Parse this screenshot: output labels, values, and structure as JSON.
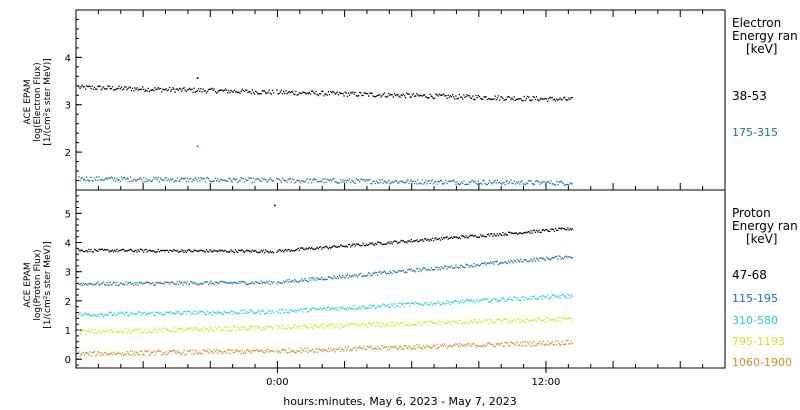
{
  "page": {
    "xaxis_label": "hours:minutes, May  6, 2023 - May  7, 2023"
  },
  "colors": {
    "black": "#000000",
    "blue": "#1a6fd0",
    "cyan": "#1fd6d6",
    "yellow": "#d2ec1a",
    "orange": "#e48a1a"
  },
  "chart_data": [
    {
      "type": "scatter",
      "panel": "electron",
      "ylabel": [
        "ACE EPAM",
        "log(Electron Flux)",
        "[1/(cm²s ster MeV)]"
      ],
      "legend_title": [
        "Electron",
        "Energy ran",
        "[keV]"
      ],
      "x_domain_hours": [
        -9,
        20
      ],
      "ylim": [
        1.2,
        5.0
      ],
      "yticks": [
        2,
        3,
        4
      ],
      "xticks": [
        {
          "hour": 0,
          "label": "0:00"
        },
        {
          "hour": 12,
          "label": "12:00"
        }
      ],
      "gap_hours": [
        -0.2,
        -0.1
      ],
      "series": [
        {
          "name": "38-53",
          "color": "#000000",
          "x_range_hours": [
            -9,
            13.2
          ],
          "y_start": 3.38,
          "y_end": 3.12,
          "noise": 0.05
        },
        {
          "name": "175-315",
          "color": "#1a6fd0",
          "x_range_hours": [
            -9,
            13.2
          ],
          "y_start": 1.45,
          "y_end": 1.36,
          "noise": 0.05
        }
      ],
      "outliers": [
        {
          "series": "38-53",
          "hour": -3.6,
          "value": 3.58
        },
        {
          "series": "175-315",
          "hour": -3.6,
          "value": 2.14
        }
      ]
    },
    {
      "type": "scatter",
      "panel": "proton",
      "ylabel": [
        "ACE EPAM",
        "log(Proton Flux)",
        "[1/(cm²s ster MeV)]"
      ],
      "legend_title": [
        "Proton",
        "Energy ran",
        "[keV]"
      ],
      "x_domain_hours": [
        -9,
        20
      ],
      "ylim": [
        -0.3,
        5.8
      ],
      "yticks": [
        0,
        1,
        2,
        3,
        4,
        5
      ],
      "xticks": [
        {
          "hour": 0,
          "label": "0:00"
        },
        {
          "hour": 12,
          "label": "12:00"
        }
      ],
      "gap_hours": [
        -0.2,
        -0.1
      ],
      "series": [
        {
          "name": "47-68",
          "color": "#000000",
          "x_range_hours": [
            -9,
            13.2
          ],
          "y_start": 3.75,
          "y_mid": 3.72,
          "y_end": 4.5,
          "noise": 0.05
        },
        {
          "name": "115-195",
          "color": "#1a6fd0",
          "x_range_hours": [
            -9,
            13.2
          ],
          "y_start": 2.6,
          "y_mid": 2.65,
          "y_end": 3.55,
          "noise": 0.06
        },
        {
          "name": "310-580",
          "color": "#1fd6d6",
          "x_range_hours": [
            -9,
            13.2
          ],
          "y_start": 1.55,
          "y_mid": 1.65,
          "y_end": 2.2,
          "noise": 0.07
        },
        {
          "name": "795-1193",
          "color": "#d2ec1a",
          "x_range_hours": [
            -9,
            13.2
          ],
          "y_start": 0.95,
          "y_mid": 1.1,
          "y_end": 1.4,
          "noise": 0.08
        },
        {
          "name": "1060-1900",
          "color": "#e48a1a",
          "x_range_hours": [
            -9,
            13.2
          ],
          "y_start": 0.2,
          "y_mid": 0.3,
          "y_end": 0.6,
          "noise": 0.08
        }
      ],
      "outliers": [
        {
          "series": "47-68",
          "hour": -0.15,
          "value": 5.3
        }
      ]
    }
  ]
}
